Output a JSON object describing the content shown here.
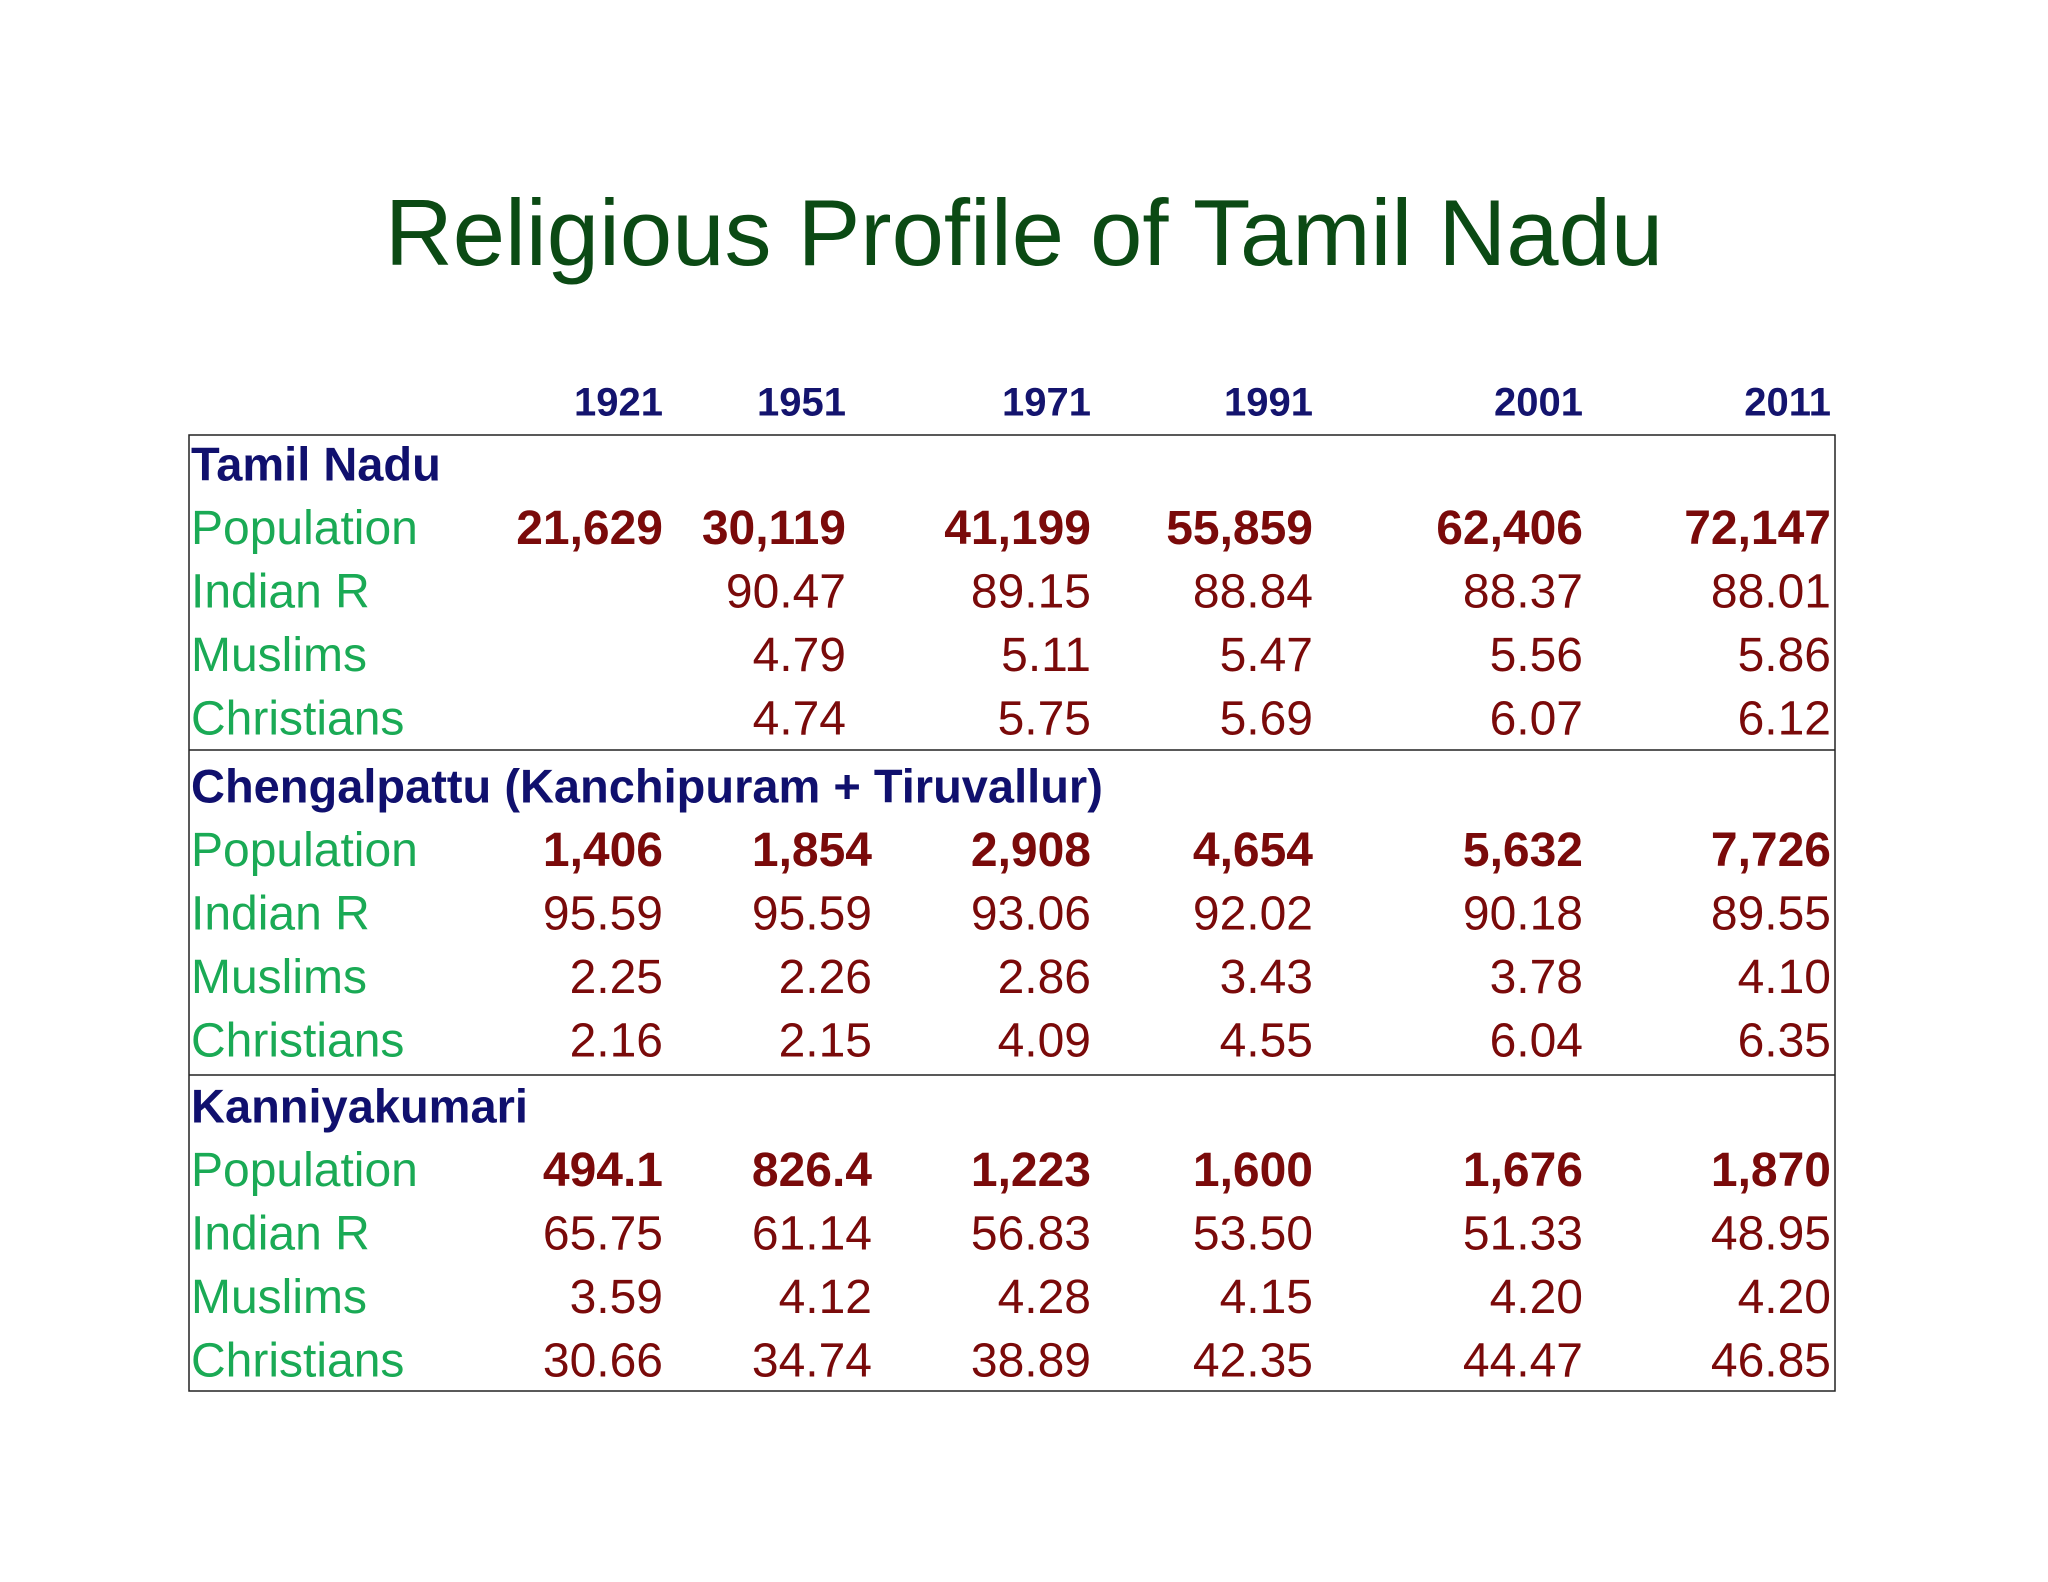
{
  "title": "Religious Profile of  Tamil Nadu",
  "table": {
    "columns": [
      "1921",
      "1951",
      "1971",
      "1991",
      "2001",
      "2011"
    ],
    "sections": [
      {
        "name": "Tamil Nadu",
        "rows": [
          {
            "label": "Population",
            "cells": [
              "21,629",
              "30,119",
              "41,199",
              "55,859",
              "62,406",
              "72,147"
            ]
          },
          {
            "label": "Indian R",
            "cells": [
              null,
              "90.47",
              "89.15",
              "88.84",
              "88.37",
              "88.01"
            ]
          },
          {
            "label": "Muslims",
            "cells": [
              null,
              "4.79",
              "5.11",
              "5.47",
              "5.56",
              "5.86"
            ]
          },
          {
            "label": "Christians",
            "cells": [
              null,
              "4.74",
              "5.75",
              "5.69",
              "6.07",
              "6.12"
            ]
          }
        ]
      },
      {
        "name": "Chengalpattu (Kanchipuram + Tiruvallur)",
        "rows": [
          {
            "label": "Population",
            "cells": [
              "1,406",
              "1,854",
              "2,908",
              "4,654",
              "5,632",
              "7,726"
            ]
          },
          {
            "label": "Indian R",
            "cells": [
              "95.59",
              "95.59",
              "93.06",
              "92.02",
              "90.18",
              "89.55"
            ]
          },
          {
            "label": "Muslims",
            "cells": [
              "2.25",
              "2.26",
              "2.86",
              "3.43",
              "3.78",
              "4.10"
            ]
          },
          {
            "label": "Christians",
            "cells": [
              "2.16",
              "2.15",
              "4.09",
              "4.55",
              "6.04",
              "6.35"
            ]
          }
        ]
      },
      {
        "name": "Kanniyakumari",
        "rows": [
          {
            "label": "Population",
            "cells": [
              "494.1",
              "826.4",
              "1,223",
              "1,600",
              "1,676",
              "1,870"
            ]
          },
          {
            "label": "Indian R",
            "cells": [
              "65.75",
              "61.14",
              "56.83",
              "53.50",
              "51.33",
              "48.95"
            ]
          },
          {
            "label": "Muslims",
            "cells": [
              "3.59",
              "4.12",
              "4.28",
              "4.15",
              "4.20",
              "4.20"
            ]
          },
          {
            "label": "Christians",
            "cells": [
              "30.66",
              "34.74",
              "38.89",
              "42.35",
              "44.47",
              "46.85"
            ]
          }
        ]
      }
    ]
  }
}
